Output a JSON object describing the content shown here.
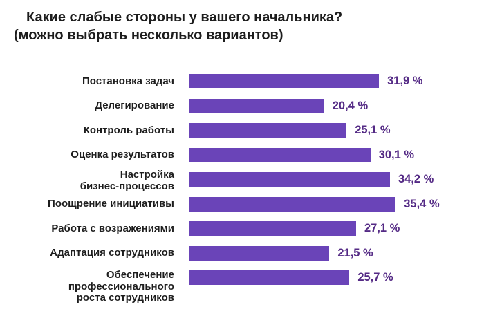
{
  "title": {
    "line1": "Какие слабые стороны у вашего начальника?",
    "line2": "(можно выбрать несколько вариантов)"
  },
  "colors": {
    "bar": "#6a44b8",
    "value_text": "#542a85",
    "title_text": "#1d1d1d"
  },
  "chart_data": {
    "type": "bar",
    "orientation": "horizontal",
    "title": "Какие слабые стороны у вашего начальника? (можно выбрать несколько вариантов)",
    "unit": "%",
    "grid": false,
    "value_labels": "end-of-bar",
    "xlim": [
      0,
      40
    ],
    "categories": [
      "Постановка задач",
      "Делегирование",
      "Контроль работы",
      "Оценка результатов",
      "Настройка бизнес-процессов",
      "Поощрение инициативы",
      "Работа с возражениями",
      "Адаптация сотрудников",
      "Обеспечение профессионального роста сотрудников"
    ],
    "values": [
      31.9,
      20.4,
      25.1,
      30.1,
      34.2,
      35.4,
      27.1,
      21.5,
      25.7
    ],
    "rows": [
      {
        "label": "Постановка задач",
        "value": 31.9,
        "display": "31,9 %"
      },
      {
        "label": "Делегирование",
        "value": 20.4,
        "display": "20,4 %"
      },
      {
        "label": "Контроль работы",
        "value": 25.1,
        "display": "25,1 %"
      },
      {
        "label": "Оценка результатов",
        "value": 30.1,
        "display": "30,1 %"
      },
      {
        "label": "Настройка\nбизнес-процессов",
        "value": 34.2,
        "display": "34,2 %"
      },
      {
        "label": "Поощрение инициативы",
        "value": 35.4,
        "display": "35,4 %"
      },
      {
        "label": "Работа с возражениями",
        "value": 27.1,
        "display": "27,1 %"
      },
      {
        "label": "Адаптация сотрудников",
        "value": 21.5,
        "display": "21,5 %"
      },
      {
        "label": "Обеспечение\nпрофессионального\nроста сотрудников",
        "value": 25.7,
        "display": "25,7 %"
      }
    ]
  }
}
